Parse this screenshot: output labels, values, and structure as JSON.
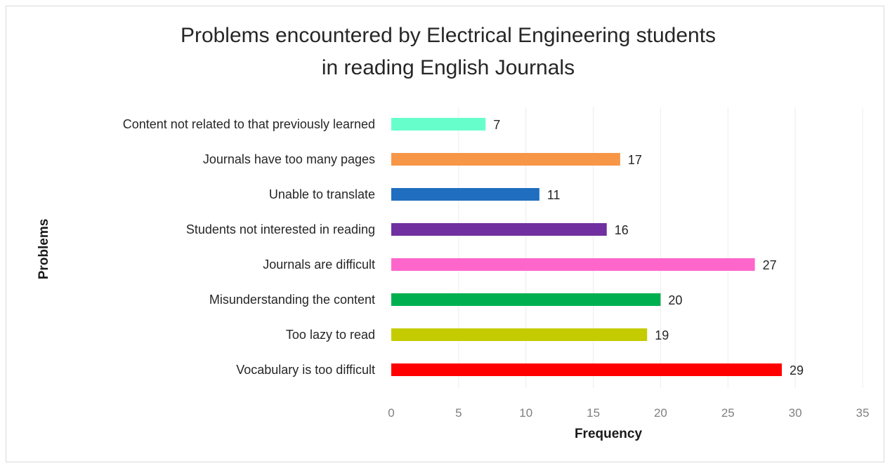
{
  "chart_data": {
    "type": "bar",
    "orientation": "horizontal",
    "title_lines": [
      "Problems encountered by Electrical Engineering students",
      "in reading English Journals"
    ],
    "xlabel": "Frequency",
    "ylabel": "Problems",
    "xlim": [
      0,
      35
    ],
    "xticks": [
      0,
      5,
      10,
      15,
      20,
      25,
      30,
      35
    ],
    "grid": "vertical",
    "legend": "none",
    "categories": [
      "Content not related to that previously learned",
      "Journals have too many pages",
      "Unable to translate",
      "Students not interested in reading",
      "Journals are difficult",
      "Misunderstanding the content",
      "Too lazy to read",
      "Vocabulary is too difficult"
    ],
    "values": [
      7,
      17,
      11,
      16,
      27,
      20,
      19,
      29
    ],
    "colors": [
      "#66ffcc",
      "#f79646",
      "#1f6ebf",
      "#7030a0",
      "#ff66cc",
      "#00b050",
      "#c4cc00",
      "#ff0000"
    ]
  }
}
